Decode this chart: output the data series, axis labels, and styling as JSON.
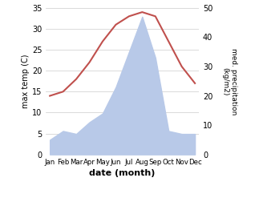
{
  "months": [
    "Jan",
    "Feb",
    "Mar",
    "Apr",
    "May",
    "Jun",
    "Jul",
    "Aug",
    "Sep",
    "Oct",
    "Nov",
    "Dec"
  ],
  "temp": [
    14,
    15,
    18,
    22,
    27,
    31,
    33,
    34,
    33,
    27,
    21,
    17
  ],
  "precip": [
    5,
    8,
    7,
    11,
    14,
    23,
    35,
    47,
    33,
    8,
    7,
    7
  ],
  "temp_color": "#c0504d",
  "precip_color": "#b8c9e8",
  "ylabel_left": "max temp (C)",
  "ylabel_right": "med. precipitation\n(kg/m2)",
  "xlabel": "date (month)",
  "ylim_left": [
    0,
    35
  ],
  "ylim_right": [
    0,
    50
  ],
  "grid_color": "#cccccc",
  "yticks_left": [
    0,
    5,
    10,
    15,
    20,
    25,
    30,
    35
  ],
  "yticks_right": [
    0,
    10,
    20,
    30,
    40,
    50
  ]
}
